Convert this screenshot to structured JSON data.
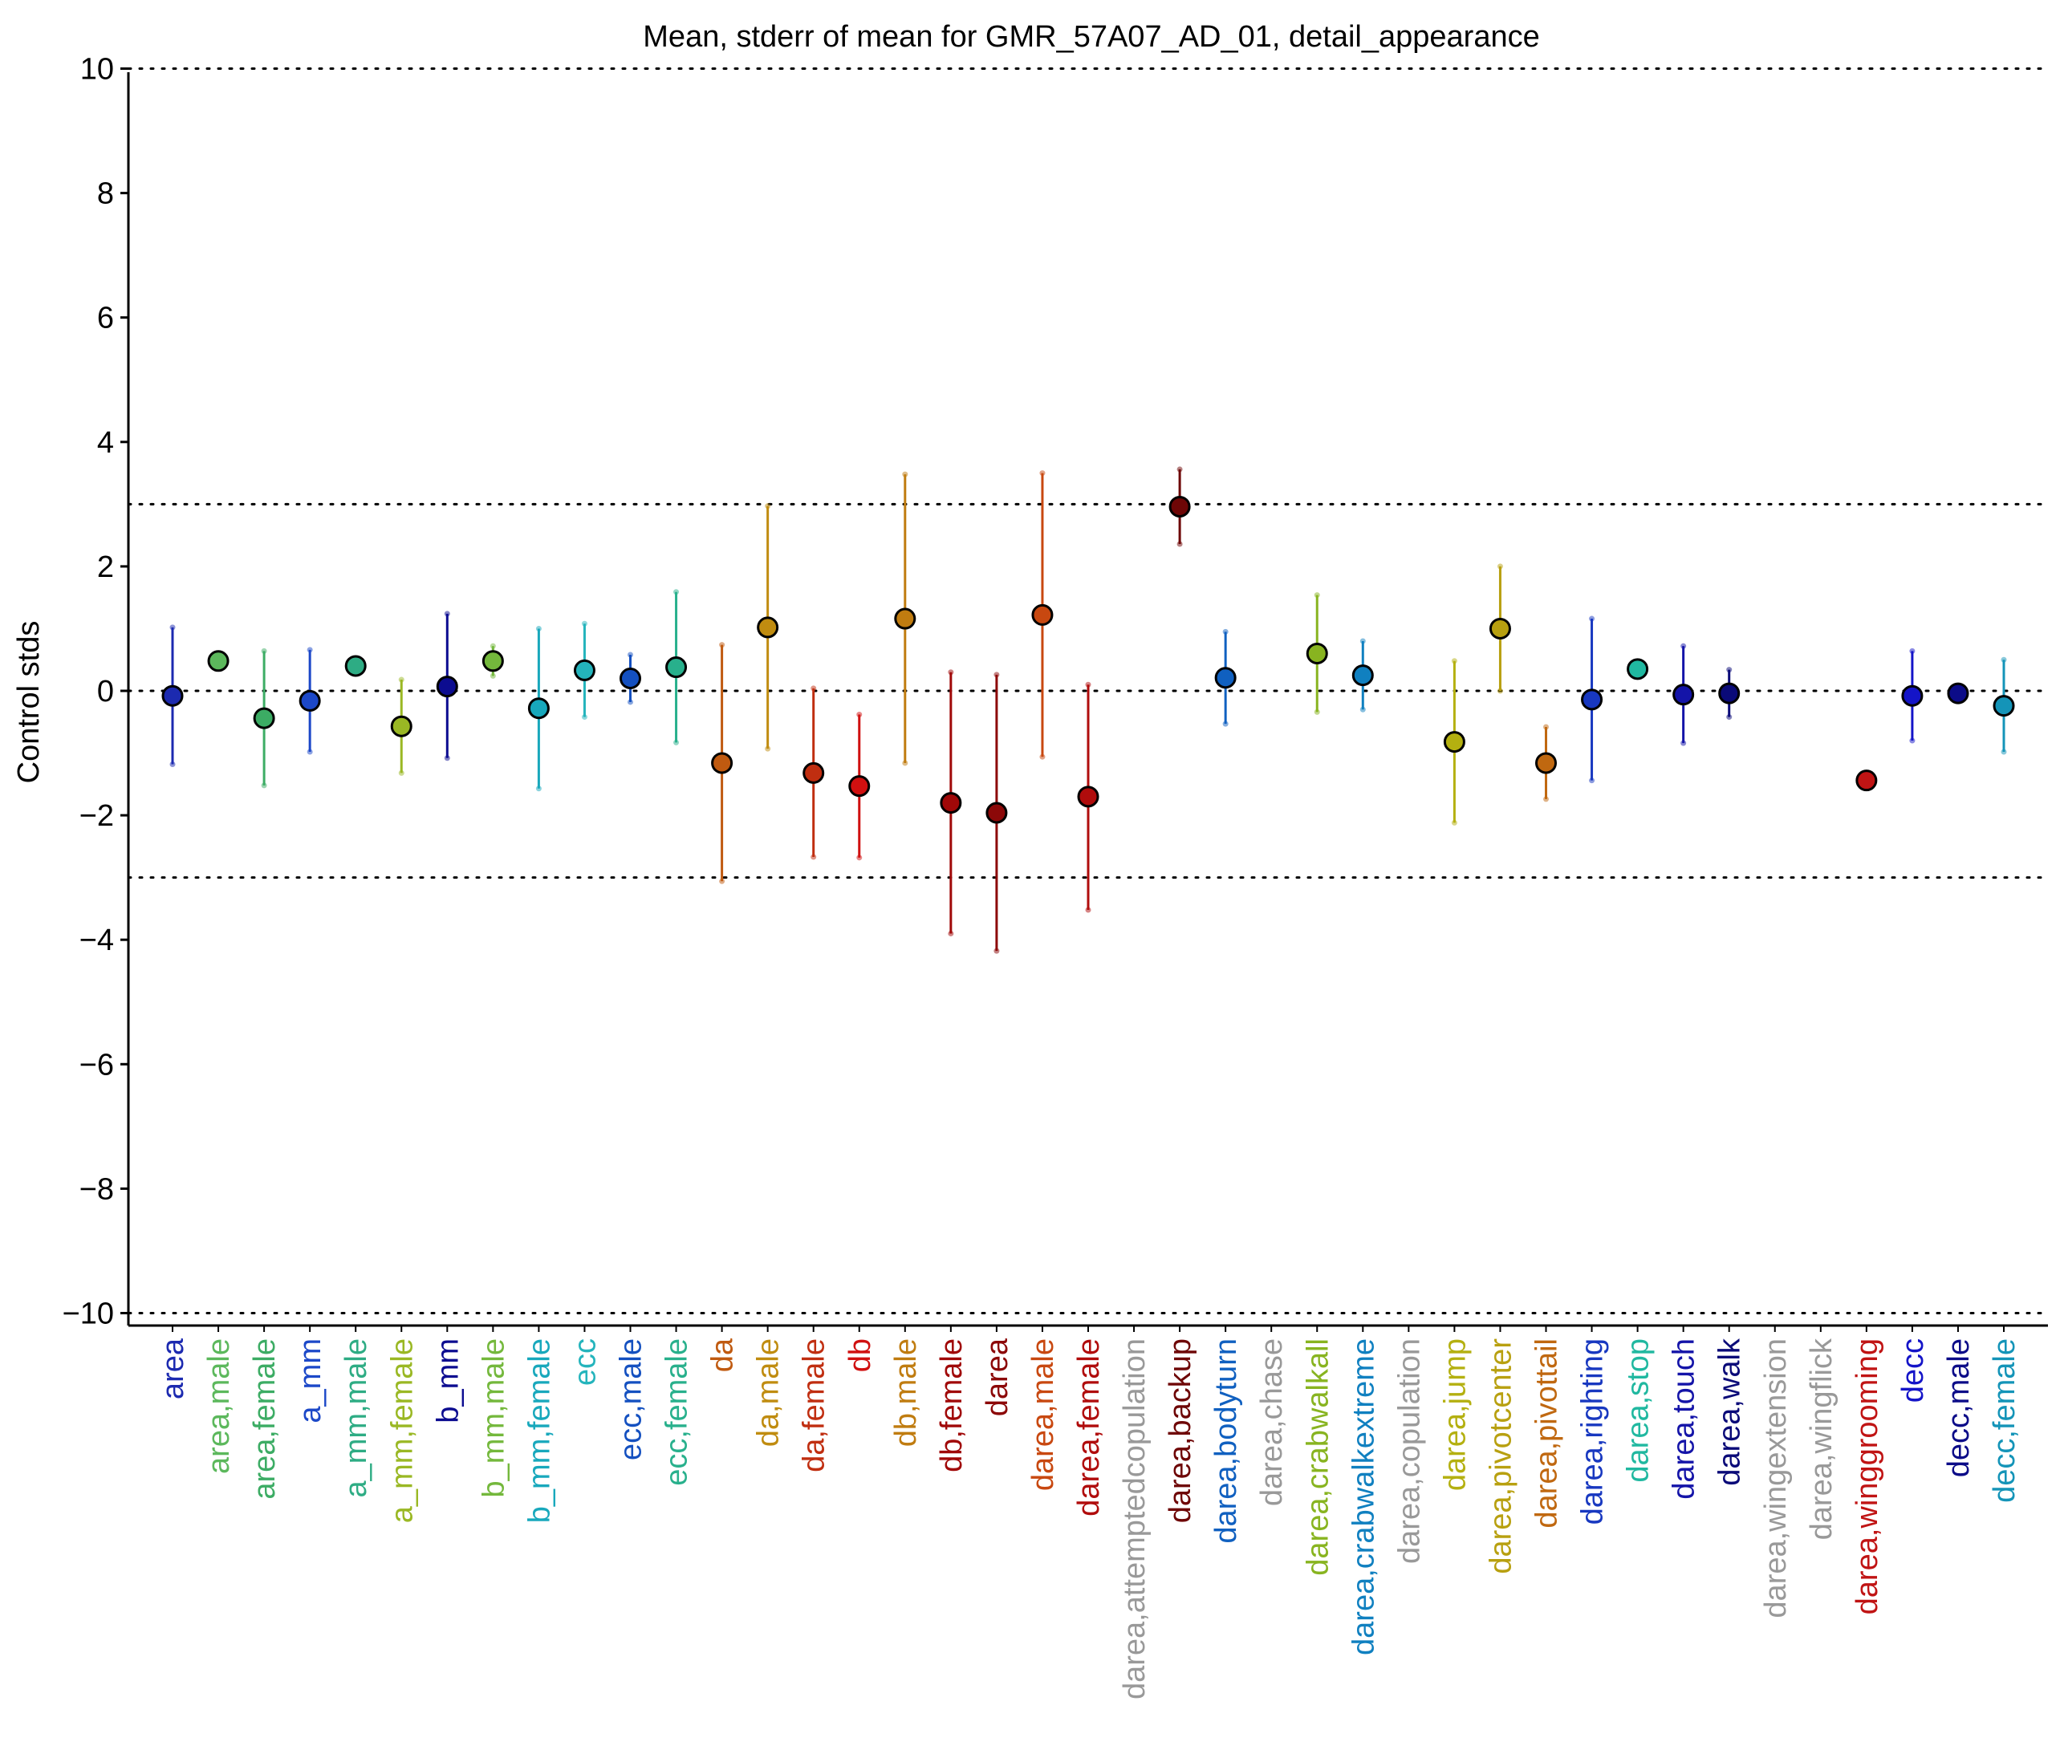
{
  "chart_data": {
    "type": "scatter",
    "title": "Mean, stderr of mean for GMR_57A07_AD_01, detail_appearance",
    "xlabel": "",
    "ylabel": "Control stds",
    "ylim": [
      -10.2,
      10.2
    ],
    "yticks": [
      10,
      8,
      6,
      4,
      2,
      0,
      -2,
      -4,
      -6,
      -8,
      -10
    ],
    "ytick_labels": [
      "10",
      "8",
      "6",
      "4",
      "2",
      "0",
      "−2",
      "−4",
      "−6",
      "−8",
      "−10"
    ],
    "reference_lines": [
      10,
      3,
      0,
      -3,
      -10
    ],
    "grid": false,
    "categories": [
      {
        "label": "area",
        "color": "#1c2ab0",
        "mean": -0.08,
        "lo": -1.18,
        "hi": 1.02
      },
      {
        "label": "area,male",
        "color": "#5cb85c",
        "mean": 0.48,
        "lo": 0.48,
        "hi": 0.48
      },
      {
        "label": "area,female",
        "color": "#3cac64",
        "mean": -0.44,
        "lo": -1.52,
        "hi": 0.64
      },
      {
        "label": "a_mm",
        "color": "#1c48c8",
        "mean": -0.16,
        "lo": -0.98,
        "hi": 0.66
      },
      {
        "label": "a_mm,male",
        "color": "#2eac84",
        "mean": 0.4,
        "lo": 0.4,
        "hi": 0.4
      },
      {
        "label": "a_mm,female",
        "color": "#9ab824",
        "mean": -0.57,
        "lo": -1.32,
        "hi": 0.18
      },
      {
        "label": "b_mm",
        "color": "#0c0c90",
        "mean": 0.07,
        "lo": -1.08,
        "hi": 1.24
      },
      {
        "label": "b_mm,male",
        "color": "#74b83c",
        "mean": 0.48,
        "lo": 0.24,
        "hi": 0.72
      },
      {
        "label": "b_mm,female",
        "color": "#18a8bc",
        "mean": -0.28,
        "lo": -1.57,
        "hi": 1.0
      },
      {
        "label": "ecc",
        "color": "#24b4bc",
        "mean": 0.33,
        "lo": -0.42,
        "hi": 1.08
      },
      {
        "label": "ecc,male",
        "color": "#1450c0",
        "mean": 0.2,
        "lo": -0.18,
        "hi": 0.58
      },
      {
        "label": "ecc,female",
        "color": "#28b08c",
        "mean": 0.38,
        "lo": -0.83,
        "hi": 1.59
      },
      {
        "label": "da",
        "color": "#c05a10",
        "mean": -1.16,
        "lo": -3.06,
        "hi": 0.74
      },
      {
        "label": "da,male",
        "color": "#c08c10",
        "mean": 1.02,
        "lo": -0.93,
        "hi": 2.97
      },
      {
        "label": "da,female",
        "color": "#c02e10",
        "mean": -1.32,
        "lo": -2.67,
        "hi": 0.04
      },
      {
        "label": "db",
        "color": "#d01010",
        "mean": -1.53,
        "lo": -2.68,
        "hi": -0.38
      },
      {
        "label": "db,male",
        "color": "#c07c10",
        "mean": 1.16,
        "lo": -1.16,
        "hi": 3.48
      },
      {
        "label": "db,female",
        "color": "#a00808",
        "mean": -1.8,
        "lo": -3.9,
        "hi": 0.3
      },
      {
        "label": "darea",
        "color": "#8c0808",
        "mean": -1.96,
        "lo": -4.18,
        "hi": 0.26
      },
      {
        "label": "darea,male",
        "color": "#c84810",
        "mean": 1.22,
        "lo": -1.06,
        "hi": 3.5
      },
      {
        "label": "darea,female",
        "color": "#b00c0c",
        "mean": -1.7,
        "lo": -3.52,
        "hi": 0.1
      },
      {
        "label": "darea,attemptedcopulation",
        "color": "#999999",
        "mean": null,
        "lo": null,
        "hi": null
      },
      {
        "label": "darea,backup",
        "color": "#6e0606",
        "mean": 2.96,
        "lo": 2.36,
        "hi": 3.56
      },
      {
        "label": "darea,bodyturn",
        "color": "#1060c0",
        "mean": 0.21,
        "lo": -0.53,
        "hi": 0.95
      },
      {
        "label": "darea,chase",
        "color": "#999999",
        "mean": null,
        "lo": null,
        "hi": null
      },
      {
        "label": "darea,crabwalkall",
        "color": "#88b420",
        "mean": 0.6,
        "lo": -0.34,
        "hi": 1.54
      },
      {
        "label": "darea,crabwalkextreme",
        "color": "#1080c0",
        "mean": 0.25,
        "lo": -0.3,
        "hi": 0.8
      },
      {
        "label": "darea,copulation",
        "color": "#999999",
        "mean": null,
        "lo": null,
        "hi": null
      },
      {
        "label": "darea,jump",
        "color": "#b4b010",
        "mean": -0.82,
        "lo": -2.12,
        "hi": 0.48
      },
      {
        "label": "darea,pivotcenter",
        "color": "#b8a010",
        "mean": 1.0,
        "lo": 0.0,
        "hi": 2.0
      },
      {
        "label": "darea,pivottail",
        "color": "#c06810",
        "mean": -1.16,
        "lo": -1.74,
        "hi": -0.58
      },
      {
        "label": "darea,righting",
        "color": "#1838c0",
        "mean": -0.14,
        "lo": -1.44,
        "hi": 1.16
      },
      {
        "label": "darea,stop",
        "color": "#20b8a0",
        "mean": 0.35,
        "lo": 0.35,
        "hi": 0.35
      },
      {
        "label": "darea,touch",
        "color": "#1414a8",
        "mean": -0.06,
        "lo": -0.84,
        "hi": 0.72
      },
      {
        "label": "darea,walk",
        "color": "#0a0a78",
        "mean": -0.04,
        "lo": -0.42,
        "hi": 0.34
      },
      {
        "label": "darea,wingextension",
        "color": "#999999",
        "mean": null,
        "lo": null,
        "hi": null
      },
      {
        "label": "darea,wingflick",
        "color": "#999999",
        "mean": null,
        "lo": null,
        "hi": null
      },
      {
        "label": "darea,winggrooming",
        "color": "#c01414",
        "mean": -1.44,
        "lo": -1.44,
        "hi": -1.44
      },
      {
        "label": "decc",
        "color": "#1414c8",
        "mean": -0.08,
        "lo": -0.8,
        "hi": 0.64
      },
      {
        "label": "decc,male",
        "color": "#0c0c88",
        "mean": -0.04,
        "lo": -0.04,
        "hi": -0.04
      },
      {
        "label": "decc,female",
        "color": "#1494b8",
        "mean": -0.24,
        "lo": -0.98,
        "hi": 0.5
      }
    ]
  }
}
